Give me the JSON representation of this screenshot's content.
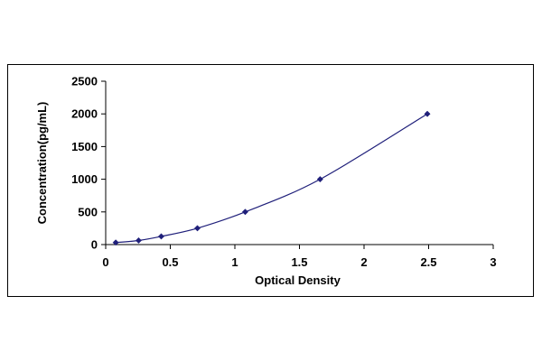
{
  "chart_data": {
    "type": "line",
    "title": "",
    "xlabel": "Optical Density",
    "ylabel": "Concentration(pg/mL)",
    "xlim": [
      0,
      3
    ],
    "ylim": [
      0,
      2500
    ],
    "x_ticks": [
      "0",
      "0.5",
      "1",
      "1.5",
      "2",
      "2.5",
      "3"
    ],
    "y_ticks": [
      "0",
      "500",
      "1000",
      "1500",
      "2000",
      "2500"
    ],
    "grid": false,
    "legend": "none",
    "series": [
      {
        "x": [
          0.078,
          0.255,
          0.43,
          0.71,
          1.08,
          1.66,
          2.49
        ],
        "y": [
          31.25,
          62.5,
          125,
          250,
          500,
          1000,
          2000
        ],
        "color": "#1f1f7a",
        "marker": "diamond",
        "smooth": true
      }
    ]
  }
}
